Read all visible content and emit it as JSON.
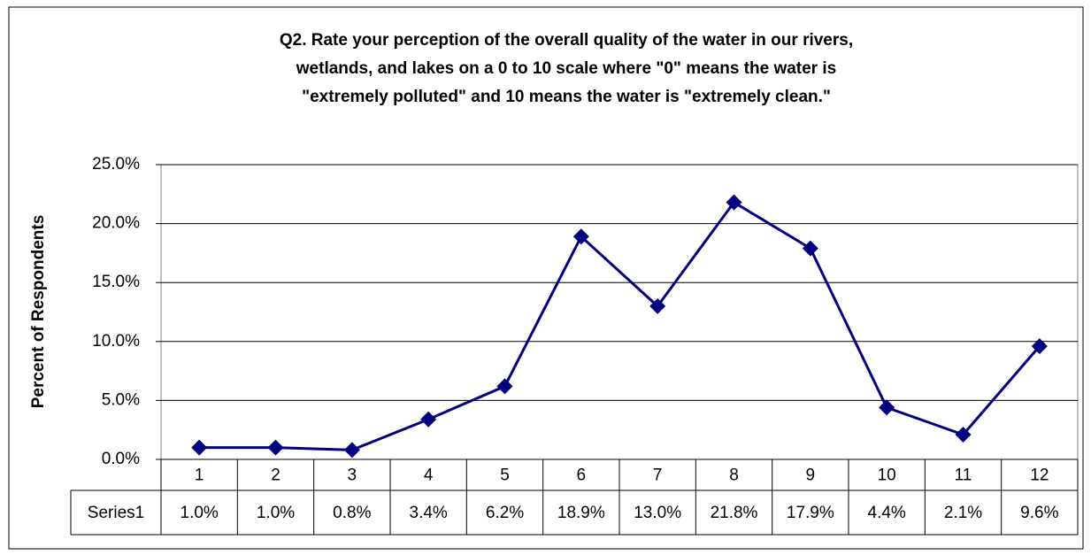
{
  "chart_data": {
    "type": "line",
    "title": [
      "Q2. Rate your perception of the overall quality of the water in our rivers,",
      "wetlands, and lakes on a 0 to 10 scale where \"0\" means the water is",
      "\"extremely polluted\" and 10 means the water is \"extremely clean.\""
    ],
    "y_label": "Percent of Respondents",
    "categories": [
      "1",
      "2",
      "3",
      "4",
      "5",
      "6",
      "7",
      "8",
      "9",
      "10",
      "11",
      "12"
    ],
    "series": [
      {
        "name": "Series1",
        "color": "#000080",
        "values": [
          1.0,
          1.0,
          0.8,
          3.4,
          6.2,
          18.9,
          13.0,
          21.8,
          17.9,
          4.4,
          2.1,
          9.6
        ],
        "value_labels": [
          "1.0%",
          "1.0%",
          "0.8%",
          "3.4%",
          "6.2%",
          "18.9%",
          "13.0%",
          "21.8%",
          "17.9%",
          "4.4%",
          "2.1%",
          "9.6%"
        ]
      }
    ],
    "ylim": [
      0,
      25
    ],
    "yticks": [
      {
        "value": 0,
        "label": "0.0%"
      },
      {
        "value": 5,
        "label": "5.0%"
      },
      {
        "value": 10,
        "label": "10.0%"
      },
      {
        "value": 15,
        "label": "15.0%"
      },
      {
        "value": 20,
        "label": "20.0%"
      },
      {
        "value": 25,
        "label": "25.0%"
      }
    ],
    "grid": true
  }
}
